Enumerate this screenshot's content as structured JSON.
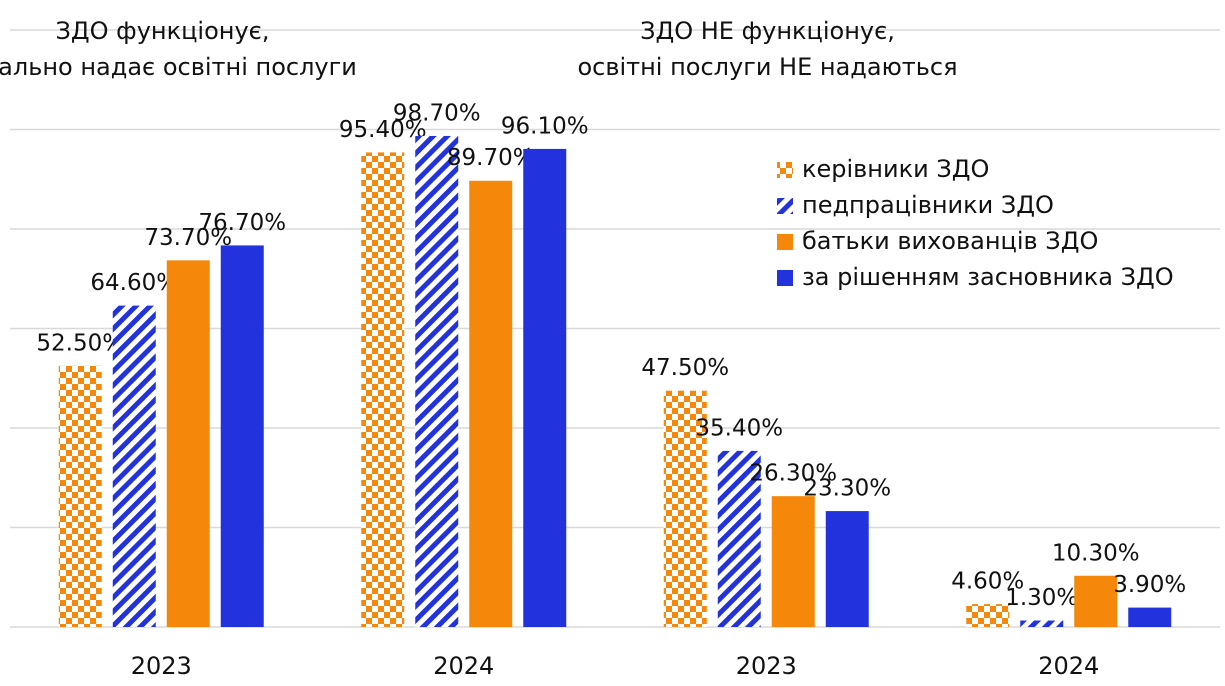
{
  "chart_data": {
    "type": "bar",
    "group_titles": [
      [
        "ЗДО функціонує,",
        "реально надає освітні послуги"
      ],
      [
        "ЗДО НЕ функціонує,",
        "освітні послуги НЕ надаються"
      ]
    ],
    "categories": [
      "2023",
      "2024",
      "2023",
      "2024"
    ],
    "series": [
      {
        "name": "керівники ЗДО",
        "color": "#f5870a",
        "pattern": "checker",
        "values": [
          52.5,
          95.4,
          47.5,
          4.6
        ],
        "value_labels": [
          "52.50%",
          "95.40%",
          "47.50%",
          "4.60%"
        ]
      },
      {
        "name": "педпрацівники ЗДО",
        "color": "#2233dd",
        "pattern": "stripes",
        "values": [
          64.6,
          98.7,
          35.4,
          1.3
        ],
        "value_labels": [
          "64.60%",
          "98.70%",
          "35.40%",
          "1.30%"
        ]
      },
      {
        "name": "батьки вихованців ЗДО",
        "color": "#f5870a",
        "pattern": "solid",
        "values": [
          73.7,
          89.7,
          26.3,
          10.3
        ],
        "value_labels": [
          "73.70%",
          "89.70%",
          "26.30%",
          "10.30%"
        ]
      },
      {
        "name": "за рішенням засновника ЗДО",
        "color": "#2233dd",
        "pattern": "solid",
        "values": [
          76.7,
          96.1,
          23.3,
          3.9
        ],
        "value_labels": [
          "76.70%",
          "96.10%",
          "23.30%",
          "3.90%"
        ]
      }
    ],
    "ylim": [
      0,
      120
    ],
    "yticks": [
      0,
      20,
      40,
      60,
      80,
      100,
      120
    ],
    "grid": true
  }
}
